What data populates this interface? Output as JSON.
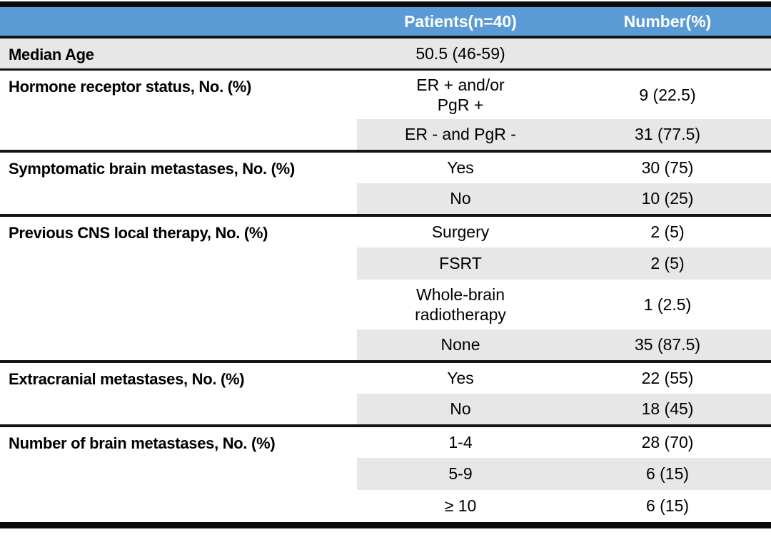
{
  "colors": {
    "header_bg": "#5B9BD5",
    "header_text": "#FFFFFF",
    "row_shade": "#E8E7E7",
    "line_color": "#141414",
    "text_color": "#000000"
  },
  "table": {
    "header": {
      "col1": "",
      "col2": "Patients(n=40)",
      "col3": "Number(%)"
    },
    "sections": [
      {
        "label": "Median Age",
        "full_shade": true,
        "rows": [
          {
            "value": "50.5 (46-59)",
            "number": "",
            "shaded": true
          }
        ]
      },
      {
        "label": "Hormone receptor status, No. (%)",
        "full_shade": false,
        "rows": [
          {
            "value": "ER + and/or\nPgR +",
            "number": "9 (22.5)",
            "shaded": false
          },
          {
            "value": "ER - and PgR -",
            "number": "31 (77.5)",
            "shaded": true
          }
        ]
      },
      {
        "label": "Symptomatic brain metastases, No. (%)",
        "full_shade": false,
        "rows": [
          {
            "value": "Yes",
            "number": "30 (75)",
            "shaded": false
          },
          {
            "value": "No",
            "number": "10 (25)",
            "shaded": true
          }
        ]
      },
      {
        "label": "Previous CNS local therapy, No. (%)",
        "full_shade": false,
        "rows": [
          {
            "value": "Surgery",
            "number": "2 (5)",
            "shaded": false
          },
          {
            "value": "FSRT",
            "number": "2 (5)",
            "shaded": true
          },
          {
            "value": "Whole-brain\nradiotherapy",
            "number": "1 (2.5)",
            "shaded": false
          },
          {
            "value": "None",
            "number": "35 (87.5)",
            "shaded": true
          }
        ]
      },
      {
        "label": "Extracranial metastases, No. (%)",
        "full_shade": false,
        "rows": [
          {
            "value": "Yes",
            "number": "22 (55)",
            "shaded": false
          },
          {
            "value": "No",
            "number": "18 (45)",
            "shaded": true
          }
        ]
      },
      {
        "label": "Number of brain metastases, No. (%)",
        "full_shade": false,
        "rows": [
          {
            "value": "1-4",
            "number": "28 (70)",
            "shaded": false
          },
          {
            "value": "5-9",
            "number": "6 (15)",
            "shaded": true
          },
          {
            "value": "≥ 10",
            "number": "6 (15)",
            "shaded": false
          }
        ]
      }
    ]
  }
}
